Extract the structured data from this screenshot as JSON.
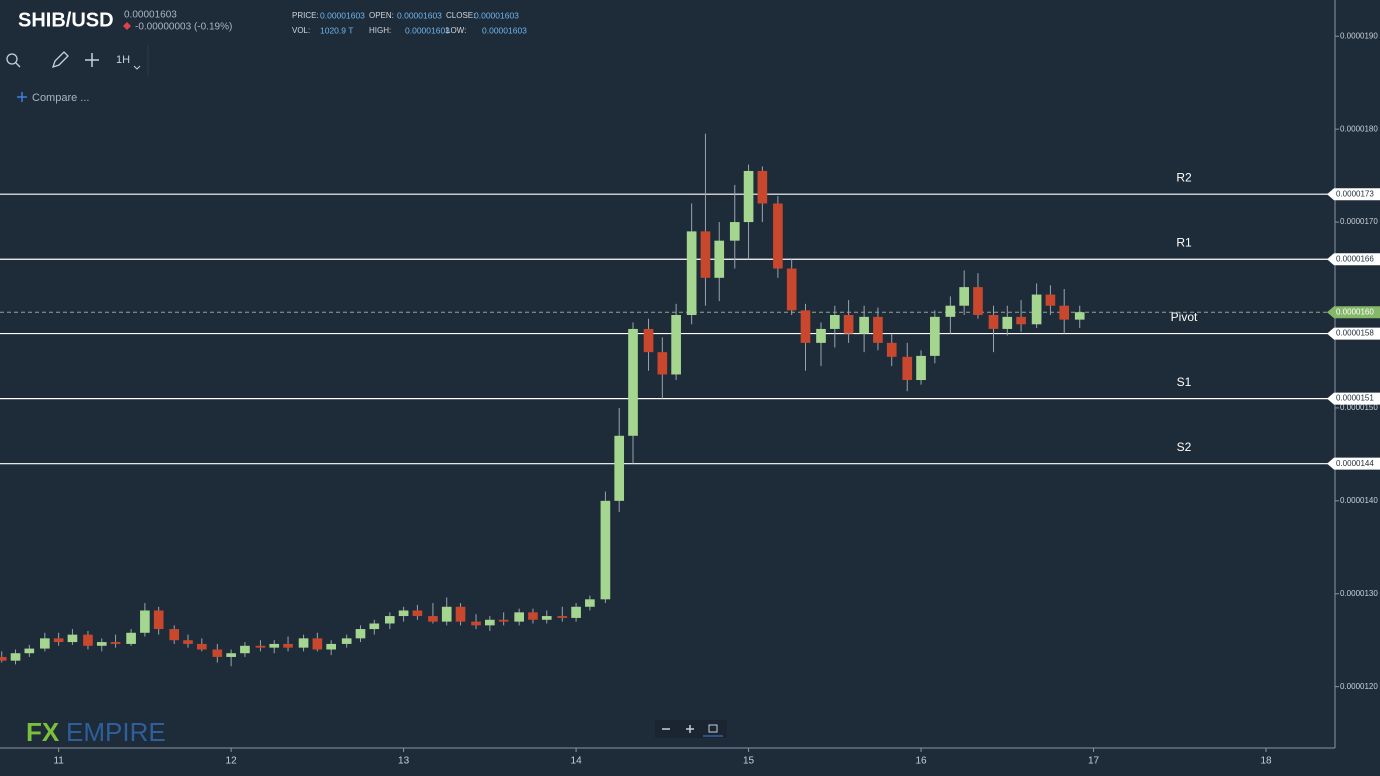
{
  "header": {
    "symbol": "SHIB/USD",
    "price": "0.00001603",
    "change": "-0.00000003 (-0.19%)",
    "stats": [
      {
        "label": "PRICE:",
        "value": "0.00001603"
      },
      {
        "label": "OPEN:",
        "value": "0.00001603"
      },
      {
        "label": "CLOSE:",
        "value": "0.00001603"
      },
      {
        "label": "VOL:",
        "value": "1020.9 T"
      },
      {
        "label": "HIGH:",
        "value": "0.00001603"
      },
      {
        "label": "LOW:",
        "value": "0.00001603"
      }
    ],
    "interval": "1H",
    "compare": "Compare ...",
    "logo": {
      "fx": "FX",
      "empire": "EMPIRE"
    }
  },
  "chart_data": {
    "type": "candlestick",
    "up_color": "#a5d68f",
    "down_color": "#c8472d",
    "grid": false,
    "x": [
      10.67,
      10.75,
      10.83,
      10.92,
      11,
      11.08,
      11.17,
      11.25,
      11.33,
      11.42,
      11.5,
      11.58,
      11.67,
      11.75,
      11.83,
      11.92,
      12,
      12.08,
      12.17,
      12.25,
      12.33,
      12.42,
      12.5,
      12.58,
      12.67,
      12.75,
      12.83,
      12.92,
      13,
      13.08,
      13.17,
      13.25,
      13.33,
      13.42,
      13.5,
      13.58,
      13.67,
      13.75,
      13.83,
      13.92,
      14,
      14.08,
      14.17,
      14.25,
      14.33,
      14.42,
      14.5,
      14.58,
      14.67,
      14.75,
      14.83,
      14.92,
      15,
      15.08,
      15.17,
      15.25,
      15.33,
      15.42,
      15.5,
      15.58,
      15.67,
      15.75,
      15.83,
      15.92,
      16,
      16.08,
      16.17,
      16.25,
      16.33,
      16.42,
      16.5,
      16.58,
      16.67,
      16.75,
      16.83,
      16.92
    ],
    "open": [
      1.232e-05,
      1.228e-05,
      1.236e-05,
      1.241e-05,
      1.252e-05,
      1.248e-05,
      1.256e-05,
      1.244e-05,
      1.248e-05,
      1.246e-05,
      1.258e-05,
      1.282e-05,
      1.262e-05,
      1.25e-05,
      1.246e-05,
      1.24e-05,
      1.232e-05,
      1.236e-05,
      1.244e-05,
      1.242e-05,
      1.246e-05,
      1.242e-05,
      1.252e-05,
      1.24e-05,
      1.246e-05,
      1.252e-05,
      1.262e-05,
      1.268e-05,
      1.276e-05,
      1.282e-05,
      1.276e-05,
      1.27e-05,
      1.286e-05,
      1.27e-05,
      1.266e-05,
      1.272e-05,
      1.27e-05,
      1.28e-05,
      1.272e-05,
      1.276e-05,
      1.274e-05,
      1.286e-05,
      1.294e-05,
      1.4e-05,
      1.47e-05,
      1.585e-05,
      1.56e-05,
      1.536e-05,
      1.6e-05,
      1.69e-05,
      1.64e-05,
      1.68e-05,
      1.7e-05,
      1.755e-05,
      1.72e-05,
      1.65e-05,
      1.605e-05,
      1.57e-05,
      1.585e-05,
      1.6e-05,
      1.58e-05,
      1.598e-05,
      1.57e-05,
      1.555e-05,
      1.53e-05,
      1.556e-05,
      1.598e-05,
      1.61e-05,
      1.63e-05,
      1.6e-05,
      1.585e-05,
      1.598e-05,
      1.59e-05,
      1.622e-05,
      1.61e-05,
      1.595e-05
    ],
    "high": [
      1.238e-05,
      1.24e-05,
      1.245e-05,
      1.258e-05,
      1.258e-05,
      1.262e-05,
      1.26e-05,
      1.252e-05,
      1.256e-05,
      1.262e-05,
      1.29e-05,
      1.286e-05,
      1.266e-05,
      1.256e-05,
      1.252e-05,
      1.246e-05,
      1.24e-05,
      1.248e-05,
      1.25e-05,
      1.25e-05,
      1.254e-05,
      1.256e-05,
      1.258e-05,
      1.25e-05,
      1.256e-05,
      1.266e-05,
      1.272e-05,
      1.28e-05,
      1.286e-05,
      1.288e-05,
      1.29e-05,
      1.296e-05,
      1.29e-05,
      1.278e-05,
      1.276e-05,
      1.28e-05,
      1.284e-05,
      1.284e-05,
      1.282e-05,
      1.286e-05,
      1.29e-05,
      1.298e-05,
      1.41e-05,
      1.5e-05,
      1.592e-05,
      1.596e-05,
      1.576e-05,
      1.612e-05,
      1.72e-05,
      1.795e-05,
      1.7e-05,
      1.74e-05,
      1.762e-05,
      1.76e-05,
      1.728e-05,
      1.66e-05,
      1.612e-05,
      1.592e-05,
      1.61e-05,
      1.616e-05,
      1.61e-05,
      1.608e-05,
      1.58e-05,
      1.57e-05,
      1.562e-05,
      1.605e-05,
      1.62e-05,
      1.648e-05,
      1.645e-05,
      1.61e-05,
      1.61e-05,
      1.616e-05,
      1.634e-05,
      1.632e-05,
      1.628e-05,
      1.61e-05
    ],
    "low": [
      1.226e-05,
      1.224e-05,
      1.232e-05,
      1.238e-05,
      1.244e-05,
      1.245e-05,
      1.24e-05,
      1.238e-05,
      1.242e-05,
      1.244e-05,
      1.254e-05,
      1.256e-05,
      1.246e-05,
      1.242e-05,
      1.238e-05,
      1.226e-05,
      1.222e-05,
      1.232e-05,
      1.238e-05,
      1.236e-05,
      1.238e-05,
      1.238e-05,
      1.238e-05,
      1.234e-05,
      1.242e-05,
      1.248e-05,
      1.256e-05,
      1.262e-05,
      1.27e-05,
      1.272e-05,
      1.268e-05,
      1.266e-05,
      1.266e-05,
      1.262e-05,
      1.26e-05,
      1.266e-05,
      1.266e-05,
      1.268e-05,
      1.268e-05,
      1.27e-05,
      1.27e-05,
      1.282e-05,
      1.29e-05,
      1.388e-05,
      1.44e-05,
      1.54e-05,
      1.51e-05,
      1.53e-05,
      1.59e-05,
      1.61e-05,
      1.615e-05,
      1.65e-05,
      1.66e-05,
      1.7e-05,
      1.64e-05,
      1.6e-05,
      1.54e-05,
      1.545e-05,
      1.565e-05,
      1.57e-05,
      1.56e-05,
      1.562e-05,
      1.545e-05,
      1.518e-05,
      1.525e-05,
      1.548e-05,
      1.58e-05,
      1.6e-05,
      1.596e-05,
      1.56e-05,
      1.578e-05,
      1.582e-05,
      1.586e-05,
      1.6e-05,
      1.58e-05,
      1.586e-05
    ],
    "close": [
      1.228e-05,
      1.236e-05,
      1.241e-05,
      1.252e-05,
      1.248e-05,
      1.256e-05,
      1.244e-05,
      1.248e-05,
      1.246e-05,
      1.258e-05,
      1.282e-05,
      1.262e-05,
      1.25e-05,
      1.246e-05,
      1.24e-05,
      1.232e-05,
      1.236e-05,
      1.244e-05,
      1.242e-05,
      1.246e-05,
      1.242e-05,
      1.252e-05,
      1.24e-05,
      1.246e-05,
      1.252e-05,
      1.262e-05,
      1.268e-05,
      1.276e-05,
      1.282e-05,
      1.276e-05,
      1.27e-05,
      1.286e-05,
      1.27e-05,
      1.266e-05,
      1.272e-05,
      1.27e-05,
      1.28e-05,
      1.272e-05,
      1.276e-05,
      1.274e-05,
      1.286e-05,
      1.294e-05,
      1.4e-05,
      1.47e-05,
      1.585e-05,
      1.56e-05,
      1.536e-05,
      1.6e-05,
      1.69e-05,
      1.64e-05,
      1.68e-05,
      1.7e-05,
      1.755e-05,
      1.72e-05,
      1.65e-05,
      1.605e-05,
      1.57e-05,
      1.585e-05,
      1.6e-05,
      1.58e-05,
      1.598e-05,
      1.57e-05,
      1.555e-05,
      1.53e-05,
      1.556e-05,
      1.598e-05,
      1.61e-05,
      1.63e-05,
      1.6e-05,
      1.585e-05,
      1.598e-05,
      1.59e-05,
      1.622e-05,
      1.61e-05,
      1.595e-05,
      1.603e-05
    ],
    "xlim": [
      10.66,
      18.4
    ],
    "xticks": [
      11,
      12,
      13,
      14,
      15,
      16,
      17,
      18
    ],
    "ylim": [
      1.134e-05,
      1.939e-05
    ],
    "yticks": [
      {
        "value": 1.2e-05,
        "label": "0.0000120"
      },
      {
        "value": 1.3e-05,
        "label": "0.0000130"
      },
      {
        "value": 1.4e-05,
        "label": "0.0000140"
      },
      {
        "value": 1.5e-05,
        "label": "0.0000150"
      },
      {
        "value": 1.6e-05,
        "label": "0.0000160"
      },
      {
        "value": 1.7e-05,
        "label": "0.0000170"
      },
      {
        "value": 1.8e-05,
        "label": "0.0000180"
      },
      {
        "value": 1.9e-05,
        "label": "0.0000190"
      }
    ],
    "levels": [
      {
        "name": "R2",
        "value": 1.73e-05,
        "label": "0.0000173"
      },
      {
        "name": "R1",
        "value": 1.66e-05,
        "label": "0.0000166"
      },
      {
        "name": "Pivot",
        "value": 1.58e-05,
        "label": "0.0000158"
      },
      {
        "name": "S1",
        "value": 1.51e-05,
        "label": "0.0000151"
      },
      {
        "name": "S2",
        "value": 1.44e-05,
        "label": "0.0000144"
      }
    ],
    "last_price": {
      "value": 1.603e-05,
      "label": "0.0000160"
    }
  }
}
